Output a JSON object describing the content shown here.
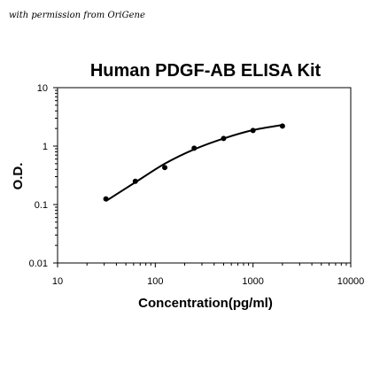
{
  "permission_note": "with permission from OriGene",
  "chart_data": {
    "type": "scatter",
    "title": "Human PDGF-AB ELISA Kit",
    "xlabel": "Concentration(pg/ml)",
    "ylabel": "O.D.",
    "x_scale": "log",
    "y_scale": "log",
    "xlim": [
      10,
      10000
    ],
    "ylim": [
      0.01,
      10
    ],
    "x_ticks": [
      "10",
      "100",
      "1000",
      "10000"
    ],
    "y_ticks": [
      "0.01",
      "0.1",
      "1",
      "10"
    ],
    "grid": false,
    "x": [
      31.25,
      62.5,
      125,
      250,
      500,
      1000,
      2000
    ],
    "y": [
      0.125,
      0.25,
      0.43,
      0.92,
      1.35,
      1.85,
      2.2
    ],
    "fit_curve": {
      "x": [
        31.25,
        62.5,
        125,
        250,
        500,
        1000,
        2000
      ],
      "y": [
        0.115,
        0.24,
        0.5,
        0.88,
        1.35,
        1.88,
        2.3
      ]
    }
  }
}
